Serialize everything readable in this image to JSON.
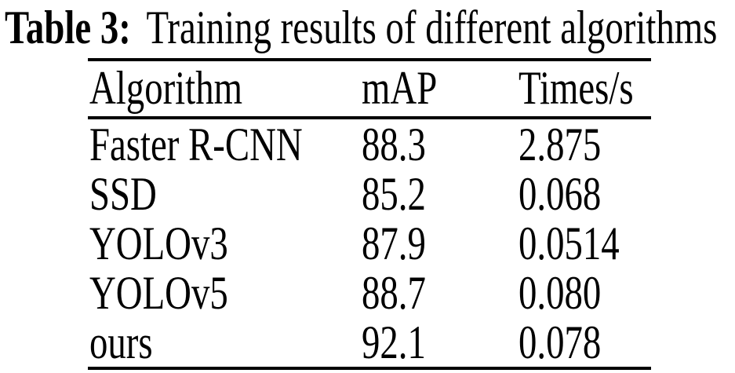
{
  "caption": {
    "label": "Table 3:",
    "text": "Training results of different algorithms"
  },
  "table": {
    "columns": [
      "Algorithm",
      "mAP",
      "Times/s"
    ],
    "rows": [
      {
        "algorithm": "Faster R-CNN",
        "map": "88.3",
        "times": "2.875"
      },
      {
        "algorithm": "SSD",
        "map": "85.2",
        "times": "0.068"
      },
      {
        "algorithm": "YOLOv3",
        "map": "87.9",
        "times": "0.0514"
      },
      {
        "algorithm": "YOLOv5",
        "map": "88.7",
        "times": "0.080"
      },
      {
        "algorithm": "ours",
        "map": "92.1",
        "times": "0.078"
      }
    ]
  },
  "colors": {
    "text": "#000000",
    "background": "#ffffff",
    "rule": "#000000"
  }
}
